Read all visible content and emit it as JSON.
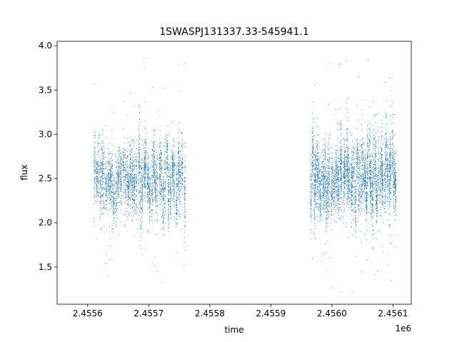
{
  "chart_data": {
    "type": "scatter",
    "title": "1SWASPJ131337.33-545941.1",
    "xlabel": "time",
    "ylabel": "flux",
    "x_offset_label": "1e6",
    "xlim": [
      2.45555,
      2.45613
    ],
    "ylim": [
      1.08,
      4.05
    ],
    "xticks": [
      2.4556,
      2.4557,
      2.4558,
      2.4559,
      2.456,
      2.4561
    ],
    "xtick_labels": [
      "2.4556",
      "2.4557",
      "2.4558",
      "2.4559",
      "2.4560",
      "2.4561"
    ],
    "yticks": [
      1.5,
      2.0,
      2.5,
      3.0,
      3.5,
      4.0
    ],
    "ytick_labels": [
      "1.5",
      "2.0",
      "2.5",
      "3.0",
      "3.5",
      "4.0"
    ],
    "grid": false,
    "marker_color": "#1f77b4",
    "series": [
      {
        "segments": [
          {
            "x_start": 2.45561,
            "x_end": 2.45576,
            "mean_flux": 2.5,
            "flux_min": 1.22,
            "flux_max": 3.9
          },
          {
            "x_start": 2.455965,
            "x_end": 2.456105,
            "mean_flux": 2.5,
            "flux_min": 1.22,
            "flux_max": 3.88
          }
        ]
      }
    ]
  }
}
